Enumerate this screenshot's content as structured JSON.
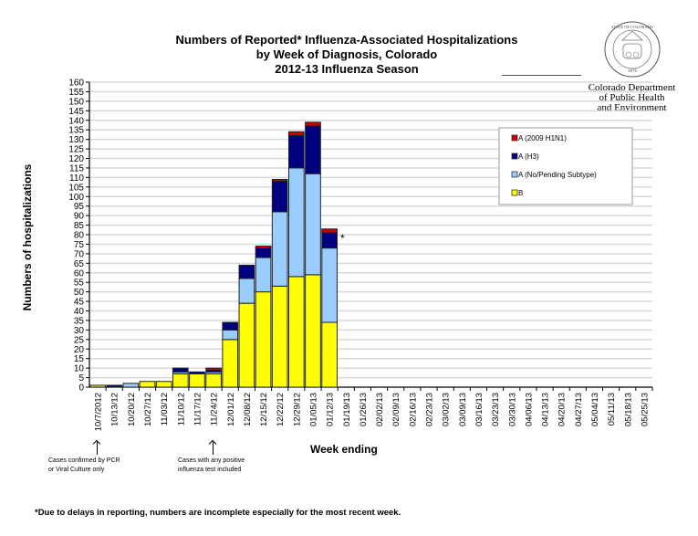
{
  "logo": {
    "seal_text": "STATE OF COLORADO 1876",
    "org_line1": "Colorado Department",
    "org_line2": "of Public Health",
    "org_line3": "and Environment"
  },
  "annotations": {
    "note_left_1": "Cases confirmed by PCR",
    "note_left_2": "or Viral Culture only",
    "note_right_1": "Cases with any positive",
    "note_right_2": "influenza test included",
    "incomplete_marker": "*",
    "footnote": "*Due to delays in reporting, numbers are incomplete especially for the most recent week."
  },
  "colors": {
    "h1n1": "#cc0000",
    "h3": "#000080",
    "no_pending": "#99ccff",
    "b": "#ffff00",
    "grid": "#d9d9d9"
  },
  "chart_data": {
    "type": "bar",
    "stacked": true,
    "title_line1": "Numbers of Reported* Influenza-Associated Hospitalizations",
    "title_line2": "by Week of Diagnosis, Colorado",
    "title_line3": "2012-13 Influenza Season",
    "xlabel": "Week ending",
    "ylabel": "Numbers of hospitalizations",
    "ylim": [
      0,
      160
    ],
    "ytick_step": 5,
    "grid": true,
    "legend_position": "top-right",
    "categories": [
      "10/7/2012",
      "10/13/12",
      "10/20/12",
      "10/27/12",
      "11/03/12",
      "11/10/12",
      "11/17/12",
      "11/24/12",
      "12/01/12",
      "12/08/12",
      "12/15/12",
      "12/22/12",
      "12/29/12",
      "01/05/13",
      "01/12/13",
      "01/19/13",
      "01/26/13",
      "02/02/13",
      "02/09/13",
      "02/16/13",
      "02/23/13",
      "03/02/13",
      "03/09/13",
      "03/16/13",
      "03/23/13",
      "03/30/13",
      "04/06/13",
      "04/13/13",
      "04/20/13",
      "04/27/13",
      "05/04/13",
      "05/11/13",
      "05/18/13",
      "05/25/13"
    ],
    "series": [
      {
        "name": "B",
        "color": "#ffff00",
        "values": [
          1,
          0,
          0,
          3,
          3,
          7,
          7,
          7,
          25,
          44,
          50,
          53,
          58,
          59,
          34,
          0,
          0,
          0,
          0,
          0,
          0,
          0,
          0,
          0,
          0,
          0,
          0,
          0,
          0,
          0,
          0,
          0,
          0,
          0
        ]
      },
      {
        "name": "A (No/Pending Subtype)",
        "color": "#99ccff",
        "values": [
          0,
          0,
          2,
          0,
          0,
          1,
          0,
          1,
          5,
          13,
          18,
          39,
          57,
          53,
          39,
          0,
          0,
          0,
          0,
          0,
          0,
          0,
          0,
          0,
          0,
          0,
          0,
          0,
          0,
          0,
          0,
          0,
          0,
          0
        ]
      },
      {
        "name": "A (H3)",
        "color": "#000080",
        "values": [
          0,
          1,
          0,
          0,
          0,
          2,
          1,
          1,
          4,
          7,
          5,
          16,
          17,
          25,
          8,
          0,
          0,
          0,
          0,
          0,
          0,
          0,
          0,
          0,
          0,
          0,
          0,
          0,
          0,
          0,
          0,
          0,
          0,
          0
        ]
      },
      {
        "name": "A (2009 H1N1)",
        "color": "#cc0000",
        "values": [
          0,
          0,
          0,
          0,
          0,
          0,
          0,
          1,
          0,
          0,
          1,
          1,
          2,
          2,
          2,
          0,
          0,
          0,
          0,
          0,
          0,
          0,
          0,
          0,
          0,
          0,
          0,
          0,
          0,
          0,
          0,
          0,
          0,
          0
        ]
      }
    ],
    "legend": [
      "A (2009 H1N1)",
      "A (H3)",
      "A (No/Pending Subtype)",
      "B"
    ]
  }
}
